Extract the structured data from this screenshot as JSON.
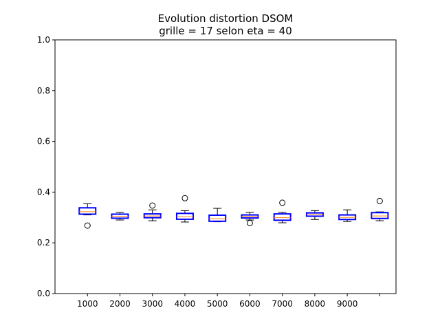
{
  "chart_data": {
    "type": "boxplot",
    "title": "Evolution distortion DSOM",
    "subtitle": "grille = 17 selon eta = 40",
    "xlabel": "",
    "ylabel": "",
    "ylim": [
      0.0,
      1.0
    ],
    "yticks": [
      "0.0",
      "0.2",
      "0.4",
      "0.6",
      "0.8",
      "1.0"
    ],
    "xticks": [
      "1000",
      "2000",
      "3000",
      "4000",
      "5000",
      "6000",
      "7000",
      "8000",
      "9000",
      ""
    ],
    "grid": false,
    "colors": {
      "box": "#0000ff",
      "median": "#ff7f0e",
      "whisker": "#000000",
      "flier": "#000000"
    },
    "boxes": [
      {
        "label": "1000",
        "whislo": 0.31,
        "q1": 0.313,
        "med": 0.323,
        "q3": 0.338,
        "whishi": 0.354,
        "fliers": [
          0.268
        ]
      },
      {
        "label": "2000",
        "whislo": 0.29,
        "q1": 0.297,
        "med": 0.305,
        "q3": 0.313,
        "whishi": 0.32,
        "fliers": []
      },
      {
        "label": "3000",
        "whislo": 0.287,
        "q1": 0.299,
        "med": 0.306,
        "q3": 0.314,
        "whishi": 0.33,
        "fliers": [
          0.347
        ]
      },
      {
        "label": "4000",
        "whislo": 0.282,
        "q1": 0.293,
        "med": 0.303,
        "q3": 0.316,
        "whishi": 0.327,
        "fliers": [
          0.376
        ]
      },
      {
        "label": "5000",
        "whislo": 0.283,
        "q1": 0.285,
        "med": 0.295,
        "q3": 0.309,
        "whishi": 0.336,
        "fliers": []
      },
      {
        "label": "6000",
        "whislo": 0.29,
        "q1": 0.298,
        "med": 0.305,
        "q3": 0.31,
        "whishi": 0.32,
        "fliers": [
          0.278
        ]
      },
      {
        "label": "7000",
        "whislo": 0.279,
        "q1": 0.289,
        "med": 0.299,
        "q3": 0.314,
        "whishi": 0.32,
        "fliers": [
          0.358
        ]
      },
      {
        "label": "8000",
        "whislo": 0.292,
        "q1": 0.305,
        "med": 0.312,
        "q3": 0.318,
        "whishi": 0.327,
        "fliers": []
      },
      {
        "label": "9000",
        "whislo": 0.284,
        "q1": 0.292,
        "med": 0.3,
        "q3": 0.31,
        "whishi": 0.33,
        "fliers": []
      },
      {
        "label": "",
        "whislo": 0.287,
        "q1": 0.296,
        "med": 0.306,
        "q3": 0.319,
        "whishi": 0.322,
        "fliers": [
          0.365
        ]
      }
    ]
  }
}
